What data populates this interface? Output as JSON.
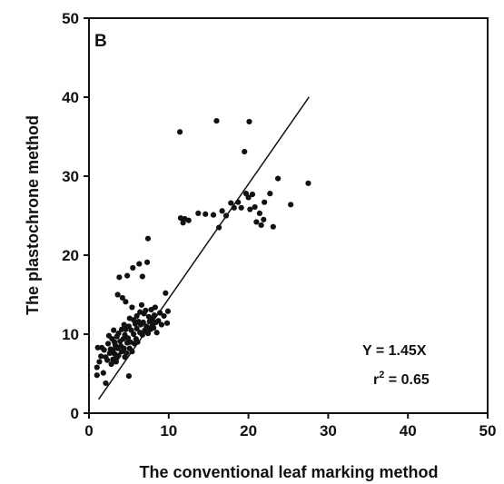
{
  "chart_data": {
    "type": "scatter",
    "panel_label": "B",
    "xlabel": "The conventional leaf marking method",
    "ylabel": "The plastochrone method",
    "xlim": [
      0,
      50
    ],
    "ylim": [
      0,
      50
    ],
    "xticks": [
      0,
      10,
      20,
      30,
      40,
      50
    ],
    "yticks": [
      0,
      10,
      20,
      30,
      40,
      50
    ],
    "grid": false,
    "points": [
      [
        1.0,
        4.8
      ],
      [
        1.0,
        5.8
      ],
      [
        1.1,
        8.3
      ],
      [
        1.3,
        6.5
      ],
      [
        1.5,
        7.2
      ],
      [
        1.6,
        8.3
      ],
      [
        1.8,
        5.1
      ],
      [
        1.9,
        8.0
      ],
      [
        2.1,
        7.1
      ],
      [
        2.1,
        3.8
      ],
      [
        2.3,
        6.7
      ],
      [
        2.4,
        8.8
      ],
      [
        2.5,
        9.8
      ],
      [
        2.6,
        7.6
      ],
      [
        2.7,
        8.1
      ],
      [
        2.8,
        6.2
      ],
      [
        2.9,
        9.4
      ],
      [
        3.0,
        8.0
      ],
      [
        3.0,
        6.8
      ],
      [
        3.1,
        10.5
      ],
      [
        3.2,
        9.0
      ],
      [
        3.2,
        7.5
      ],
      [
        3.3,
        8.6
      ],
      [
        3.4,
        6.5
      ],
      [
        3.5,
        9.7
      ],
      [
        3.5,
        7.0
      ],
      [
        3.6,
        8.2
      ],
      [
        3.6,
        15.0
      ],
      [
        3.7,
        10.1
      ],
      [
        3.7,
        7.3
      ],
      [
        3.8,
        17.2
      ],
      [
        3.9,
        9.1
      ],
      [
        4.0,
        8.5
      ],
      [
        4.1,
        10.6
      ],
      [
        4.1,
        7.8
      ],
      [
        4.2,
        14.6
      ],
      [
        4.3,
        9.4
      ],
      [
        4.4,
        11.2
      ],
      [
        4.4,
        8.2
      ],
      [
        4.5,
        7.1
      ],
      [
        4.5,
        9.9
      ],
      [
        4.6,
        10.6
      ],
      [
        4.6,
        14.1
      ],
      [
        4.7,
        7.6
      ],
      [
        4.8,
        8.9
      ],
      [
        4.8,
        17.4
      ],
      [
        4.9,
        9.5
      ],
      [
        5.0,
        11.0
      ],
      [
        5.0,
        4.7
      ],
      [
        5.1,
        8.2
      ],
      [
        5.1,
        12.0
      ],
      [
        5.2,
        9.0
      ],
      [
        5.3,
        10.5
      ],
      [
        5.4,
        7.8
      ],
      [
        5.4,
        13.4
      ],
      [
        5.5,
        18.4
      ],
      [
        5.6,
        10.0
      ],
      [
        5.6,
        11.8
      ],
      [
        5.7,
        8.8
      ],
      [
        5.8,
        11.3
      ],
      [
        5.9,
        9.4
      ],
      [
        6.0,
        10.7
      ],
      [
        6.0,
        12.3
      ],
      [
        6.1,
        9.0
      ],
      [
        6.2,
        11.6
      ],
      [
        6.3,
        18.9
      ],
      [
        6.4,
        10.2
      ],
      [
        6.4,
        12.8
      ],
      [
        6.5,
        11.2
      ],
      [
        6.6,
        13.7
      ],
      [
        6.7,
        9.9
      ],
      [
        6.7,
        17.3
      ],
      [
        6.8,
        11.5
      ],
      [
        6.9,
        12.6
      ],
      [
        7.0,
        10.5
      ],
      [
        7.1,
        13.0
      ],
      [
        7.2,
        11.0
      ],
      [
        7.3,
        19.1
      ],
      [
        7.4,
        10.1
      ],
      [
        7.4,
        22.1
      ],
      [
        7.5,
        12.2
      ],
      [
        7.6,
        11.6
      ],
      [
        7.7,
        10.6
      ],
      [
        7.8,
        13.1
      ],
      [
        7.9,
        12.0
      ],
      [
        8.0,
        11.1
      ],
      [
        8.1,
        10.8
      ],
      [
        8.2,
        12.4
      ],
      [
        8.3,
        13.4
      ],
      [
        8.4,
        11.5
      ],
      [
        8.5,
        10.2
      ],
      [
        8.7,
        11.7
      ],
      [
        8.9,
        12.7
      ],
      [
        9.1,
        11.2
      ],
      [
        9.4,
        12.3
      ],
      [
        9.6,
        15.2
      ],
      [
        9.8,
        11.4
      ],
      [
        9.9,
        12.9
      ],
      [
        11.4,
        35.6
      ],
      [
        11.5,
        24.7
      ],
      [
        11.8,
        24.1
      ],
      [
        12.0,
        24.6
      ],
      [
        12.5,
        24.4
      ],
      [
        13.7,
        25.3
      ],
      [
        14.6,
        25.2
      ],
      [
        15.6,
        25.1
      ],
      [
        16.0,
        37.0
      ],
      [
        16.3,
        23.5
      ],
      [
        16.7,
        25.6
      ],
      [
        17.2,
        25.0
      ],
      [
        17.8,
        26.6
      ],
      [
        18.2,
        26.0
      ],
      [
        18.7,
        26.7
      ],
      [
        19.1,
        26.0
      ],
      [
        19.5,
        33.1
      ],
      [
        19.7,
        27.8
      ],
      [
        20.0,
        27.3
      ],
      [
        20.1,
        36.9
      ],
      [
        20.2,
        25.8
      ],
      [
        20.5,
        27.7
      ],
      [
        20.8,
        26.1
      ],
      [
        21.0,
        24.2
      ],
      [
        21.4,
        25.3
      ],
      [
        21.6,
        23.8
      ],
      [
        21.9,
        24.5
      ],
      [
        22.0,
        26.7
      ],
      [
        22.7,
        27.8
      ],
      [
        23.1,
        23.6
      ],
      [
        23.7,
        29.7
      ],
      [
        25.3,
        26.4
      ],
      [
        27.5,
        29.1
      ]
    ],
    "fit_line": {
      "slope": 1.45,
      "x": [
        1.2,
        27.6
      ]
    },
    "annotations": {
      "equation": "Y = 1.45X",
      "r2_prefix": "r",
      "r2_sup": "2",
      "r2_suffix": " = 0.65"
    }
  }
}
